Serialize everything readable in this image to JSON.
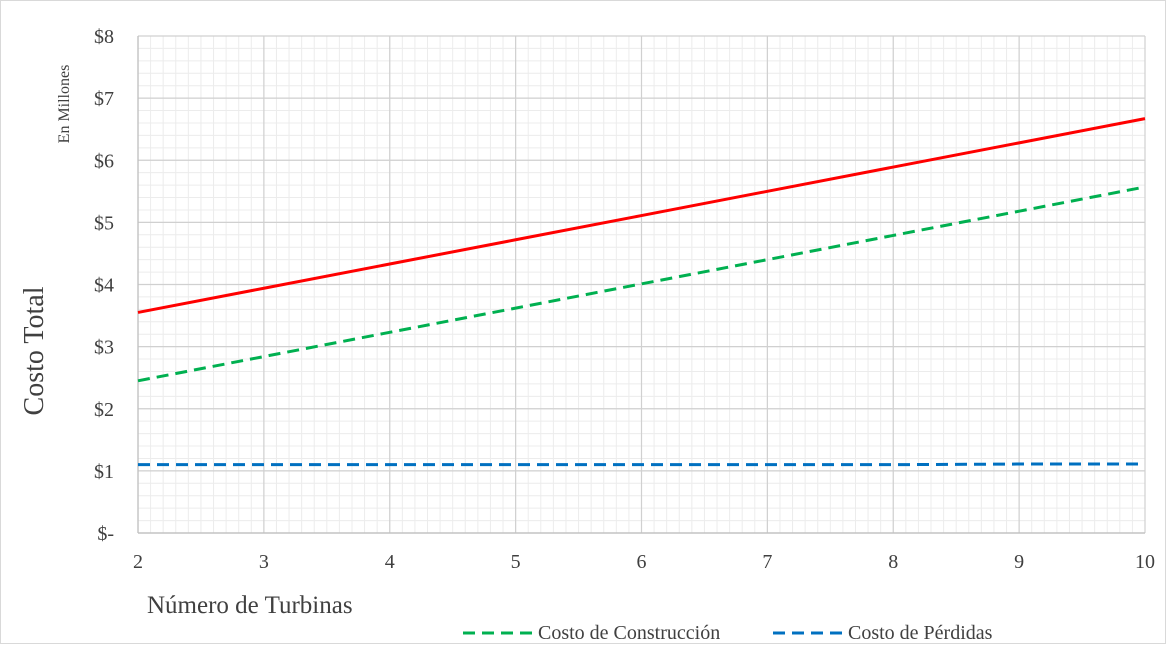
{
  "chart_data": {
    "type": "line",
    "title": "",
    "ylabel": "Costo Total",
    "ylabel_sub": "En Millones",
    "xlabel": "Número de Turbinas",
    "x": [
      2,
      3,
      4,
      5,
      6,
      7,
      8,
      9,
      10
    ],
    "xticks": [
      2,
      3,
      4,
      5,
      6,
      7,
      8,
      9,
      10
    ],
    "xtick_labels": [
      "2",
      "3",
      "4",
      "5",
      "6",
      "7",
      "8",
      "9",
      "10"
    ],
    "xlim": [
      2,
      10
    ],
    "yticks": [
      0,
      1,
      2,
      3,
      4,
      5,
      6,
      7,
      8
    ],
    "ytick_labels": [
      "$-",
      "$1",
      "$2",
      "$3",
      "$4",
      "$5",
      "$6",
      "$7",
      "$8"
    ],
    "ylim": [
      0,
      8
    ],
    "grid": true,
    "legend_position": "bottom-right",
    "series": [
      {
        "color": "#ff0000",
        "dash": "solid",
        "in_legend": false,
        "values": [
          3.55,
          3.94,
          4.33,
          4.72,
          5.11,
          5.5,
          5.89,
          6.28,
          6.67
        ]
      },
      {
        "name": "Costo de Construcción",
        "color": "#00b050",
        "dash": "dashed",
        "in_legend": true,
        "values": [
          2.45,
          2.84,
          3.23,
          3.62,
          4.01,
          4.4,
          4.79,
          5.18,
          5.57
        ]
      },
      {
        "name": "Costo de Pérdidas",
        "color": "#0070c0",
        "dash": "dashed",
        "in_legend": true,
        "values": [
          1.1,
          1.1,
          1.1,
          1.1,
          1.1,
          1.1,
          1.1,
          1.11,
          1.11
        ]
      }
    ]
  }
}
